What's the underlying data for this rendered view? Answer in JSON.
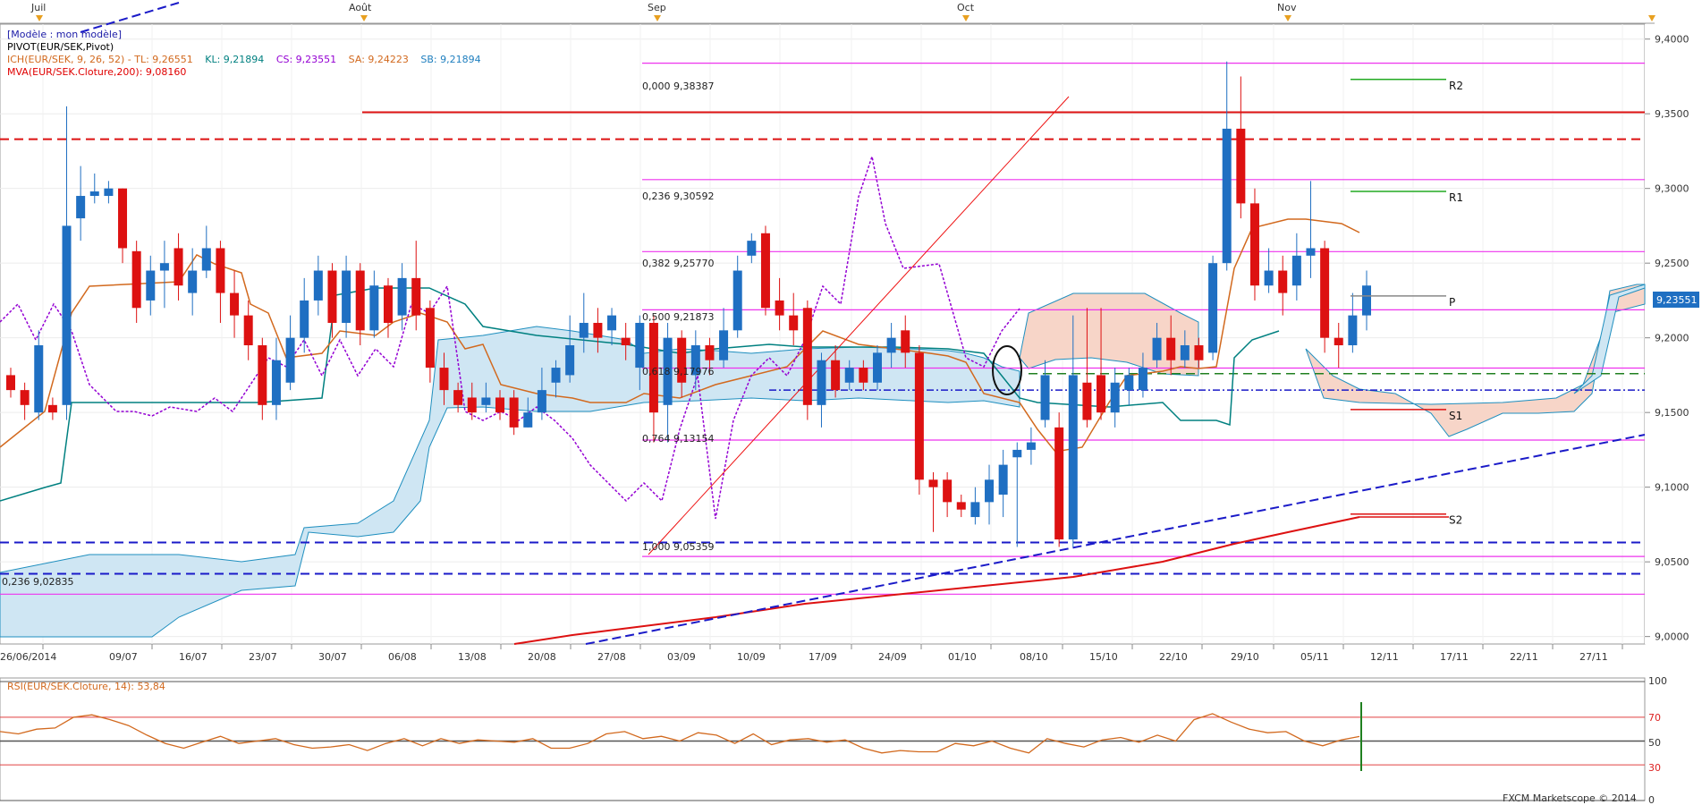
{
  "top_axis": {
    "labels": [
      "Juil",
      "Août",
      "Sep",
      "Oct",
      "Nov"
    ]
  },
  "legend": [
    {
      "text": "[Modèle : mon modèle]",
      "color": "#1a1aa6"
    },
    {
      "text": "PIVOT(EUR/SEK,Pivot)",
      "color": "#000000"
    },
    {
      "text": "ICH(EUR/SEK, 9, 26, 52) - ",
      "color": "#d2691e",
      "parts": [
        {
          "text": "TL: 9,26551",
          "color": "#d2691e"
        },
        {
          "text": "KL: 9,21894",
          "color": "#008080"
        },
        {
          "text": "CS: 9,23551",
          "color": "#9400d3"
        },
        {
          "text": "SA: 9,24223",
          "color": "#d2691e"
        },
        {
          "text": "SB: 9,21894",
          "color": "#1f7fbf"
        }
      ]
    },
    {
      "text": "MVA(EUR/SEK.Cloture,200): 9,08160",
      "color": "#e00000"
    }
  ],
  "price_axis": {
    "labels": [
      "9,4000",
      "9,3500",
      "9,3000",
      "9,2500",
      "9,2000",
      "9,1500",
      "9,1000",
      "9,0500",
      "9,0000"
    ],
    "current_label": "9,23551"
  },
  "fib_labels": [
    "0,000 9,38387",
    "0,236 9,30592",
    "0,382 9,25770",
    "0,500 9,21873",
    "0,618 9,17976",
    "0,764 9,13154",
    "1,000 9,05359",
    "0,236 9,02835"
  ],
  "pivot_labels": [
    "R2",
    "R1",
    "P",
    "S1",
    "S2"
  ],
  "date_axis": {
    "labels": [
      "26/06/2014",
      "09/07",
      "16/07",
      "23/07",
      "30/07",
      "06/08",
      "13/08",
      "20/08",
      "27/08",
      "03/09",
      "10/09",
      "17/09",
      "24/09",
      "01/10",
      "08/10",
      "15/10",
      "22/10",
      "29/10",
      "05/11",
      "12/11",
      "17/11",
      "22/11",
      "27/11"
    ]
  },
  "rsi_panel": {
    "legend": "RSI(EUR/SEK.Cloture, 14): 53,84",
    "levels": [
      "100",
      "70",
      "50",
      "30",
      "0"
    ]
  },
  "footer": "FXCM Marketscope © 2014",
  "colors": {
    "up": "#1f6fc2",
    "down": "#dd1111",
    "cloud_bull": "#cfe6f3",
    "cloud_bear": "#f7d5c8",
    "fib": "#ee33ee"
  },
  "chart_data": [
    {
      "type": "candlestick",
      "title": "EUR/SEK",
      "ylim": [
        8.995,
        9.41
      ],
      "x_categories": [
        "26/06/2014",
        "09/07",
        "16/07",
        "23/07",
        "30/07",
        "06/08",
        "13/08",
        "20/08",
        "27/08",
        "03/09",
        "10/09",
        "17/09",
        "24/09",
        "01/10",
        "08/10",
        "15/10",
        "22/10",
        "29/10",
        "05/11",
        "12/11",
        "17/11",
        "22/11",
        "27/11"
      ],
      "candles": [
        [
          9.175,
          9.165,
          9.18,
          9.16
        ],
        [
          9.165,
          9.155,
          9.17,
          9.145
        ],
        [
          9.15,
          9.195,
          9.205,
          9.145
        ],
        [
          9.155,
          9.15,
          9.16,
          9.145
        ],
        [
          9.155,
          9.275,
          9.355,
          9.145
        ],
        [
          9.28,
          9.295,
          9.315,
          9.265
        ],
        [
          9.295,
          9.298,
          9.31,
          9.29
        ],
        [
          9.295,
          9.3,
          9.305,
          9.29
        ],
        [
          9.3,
          9.26,
          9.3,
          9.25
        ],
        [
          9.258,
          9.22,
          9.265,
          9.21
        ],
        [
          9.225,
          9.245,
          9.255,
          9.215
        ],
        [
          9.245,
          9.25,
          9.265,
          9.22
        ],
        [
          9.26,
          9.235,
          9.27,
          9.225
        ],
        [
          9.23,
          9.245,
          9.26,
          9.215
        ],
        [
          9.245,
          9.26,
          9.275,
          9.24
        ],
        [
          9.26,
          9.23,
          9.265,
          9.21
        ],
        [
          9.23,
          9.215,
          9.245,
          9.2
        ],
        [
          9.215,
          9.195,
          9.225,
          9.185
        ],
        [
          9.195,
          9.155,
          9.2,
          9.145
        ],
        [
          9.155,
          9.185,
          9.2,
          9.145
        ],
        [
          9.17,
          9.2,
          9.215,
          9.165
        ],
        [
          9.2,
          9.225,
          9.24,
          9.19
        ],
        [
          9.225,
          9.245,
          9.255,
          9.215
        ],
        [
          9.245,
          9.21,
          9.25,
          9.2
        ],
        [
          9.21,
          9.245,
          9.255,
          9.2
        ],
        [
          9.245,
          9.205,
          9.25,
          9.195
        ],
        [
          9.205,
          9.235,
          9.245,
          9.2
        ],
        [
          9.235,
          9.21,
          9.24,
          9.2
        ],
        [
          9.215,
          9.24,
          9.25,
          9.205
        ],
        [
          9.24,
          9.215,
          9.265,
          9.205
        ],
        [
          9.22,
          9.18,
          9.225,
          9.17
        ],
        [
          9.18,
          9.165,
          9.19,
          9.155
        ],
        [
          9.165,
          9.155,
          9.17,
          9.15
        ],
        [
          9.16,
          9.15,
          9.17,
          9.145
        ],
        [
          9.155,
          9.16,
          9.17,
          9.15
        ],
        [
          9.16,
          9.15,
          9.165,
          9.145
        ],
        [
          9.16,
          9.14,
          9.165,
          9.135
        ],
        [
          9.14,
          9.15,
          9.16,
          9.14
        ],
        [
          9.15,
          9.165,
          9.18,
          9.145
        ],
        [
          9.17,
          9.18,
          9.185,
          9.16
        ],
        [
          9.175,
          9.195,
          9.215,
          9.17
        ],
        [
          9.2,
          9.21,
          9.23,
          9.19
        ],
        [
          9.21,
          9.2,
          9.22,
          9.19
        ],
        [
          9.205,
          9.215,
          9.22,
          9.195
        ],
        [
          9.2,
          9.195,
          9.21,
          9.185
        ],
        [
          9.18,
          9.21,
          9.215,
          9.165
        ],
        [
          9.21,
          9.15,
          9.215,
          9.13
        ],
        [
          9.155,
          9.2,
          9.21,
          9.13
        ],
        [
          9.2,
          9.17,
          9.205,
          9.16
        ],
        [
          9.175,
          9.195,
          9.205,
          9.165
        ],
        [
          9.195,
          9.185,
          9.2,
          9.175
        ],
        [
          9.185,
          9.205,
          9.22,
          9.18
        ],
        [
          9.205,
          9.245,
          9.255,
          9.2
        ],
        [
          9.255,
          9.265,
          9.27,
          9.25
        ],
        [
          9.27,
          9.22,
          9.275,
          9.215
        ],
        [
          9.225,
          9.215,
          9.24,
          9.205
        ],
        [
          9.215,
          9.205,
          9.23,
          9.195
        ],
        [
          9.22,
          9.155,
          9.225,
          9.145
        ],
        [
          9.155,
          9.185,
          9.19,
          9.14
        ],
        [
          9.185,
          9.165,
          9.195,
          9.16
        ],
        [
          9.17,
          9.18,
          9.185,
          9.165
        ],
        [
          9.18,
          9.17,
          9.185,
          9.165
        ],
        [
          9.17,
          9.19,
          9.195,
          9.165
        ],
        [
          9.19,
          9.2,
          9.21,
          9.18
        ],
        [
          9.205,
          9.19,
          9.215,
          9.18
        ],
        [
          9.19,
          9.105,
          9.195,
          9.095
        ],
        [
          9.105,
          9.1,
          9.11,
          9.07
        ],
        [
          9.105,
          9.09,
          9.11,
          9.08
        ],
        [
          9.09,
          9.085,
          9.095,
          9.08
        ],
        [
          9.08,
          9.09,
          9.1,
          9.075
        ],
        [
          9.09,
          9.105,
          9.115,
          9.075
        ],
        [
          9.095,
          9.115,
          9.125,
          9.08
        ],
        [
          9.12,
          9.125,
          9.13,
          9.06
        ],
        [
          9.125,
          9.13,
          9.14,
          9.115
        ],
        [
          9.145,
          9.175,
          9.185,
          9.14
        ],
        [
          9.14,
          9.065,
          9.15,
          9.06
        ],
        [
          9.065,
          9.175,
          9.215,
          9.06
        ],
        [
          9.17,
          9.145,
          9.22,
          9.14
        ],
        [
          9.175,
          9.15,
          9.22,
          9.145
        ],
        [
          9.15,
          9.17,
          9.18,
          9.14
        ],
        [
          9.165,
          9.175,
          9.18,
          9.155
        ],
        [
          9.165,
          9.18,
          9.19,
          9.16
        ],
        [
          9.185,
          9.2,
          9.21,
          9.18
        ],
        [
          9.2,
          9.185,
          9.215,
          9.175
        ],
        [
          9.185,
          9.195,
          9.205,
          9.18
        ],
        [
          9.195,
          9.185,
          9.2,
          9.18
        ],
        [
          9.19,
          9.25,
          9.255,
          9.185
        ],
        [
          9.25,
          9.34,
          9.385,
          9.245
        ],
        [
          9.34,
          9.29,
          9.375,
          9.28
        ],
        [
          9.29,
          9.235,
          9.3,
          9.225
        ],
        [
          9.235,
          9.245,
          9.26,
          9.23
        ],
        [
          9.245,
          9.23,
          9.255,
          9.215
        ],
        [
          9.235,
          9.255,
          9.27,
          9.225
        ],
        [
          9.255,
          9.26,
          9.305,
          9.24
        ],
        [
          9.26,
          9.2,
          9.265,
          9.19
        ],
        [
          9.2,
          9.195,
          9.21,
          9.18
        ],
        [
          9.195,
          9.215,
          9.23,
          9.19
        ],
        [
          9.215,
          9.235,
          9.245,
          9.205
        ]
      ],
      "horizontal_levels": [
        {
          "name": "fib 0,000",
          "y": 9.38387,
          "color": "#ee33ee"
        },
        {
          "name": "fib 0,236",
          "y": 9.30592,
          "color": "#ee33ee"
        },
        {
          "name": "fib 0,382",
          "y": 9.2577,
          "color": "#ee33ee"
        },
        {
          "name": "fib 0,500",
          "y": 9.21873,
          "color": "#ee33ee"
        },
        {
          "name": "fib 0,618",
          "y": 9.17976,
          "color": "#ee33ee"
        },
        {
          "name": "fib 0,764",
          "y": 9.13154,
          "color": "#ee33ee"
        },
        {
          "name": "fib 1,000",
          "y": 9.05359,
          "color": "#ee33ee"
        },
        {
          "name": "fib 0,236",
          "y": 9.02835,
          "color": "#ee33ee"
        },
        {
          "name": "resistance",
          "y": 9.351,
          "color": "#dd1111",
          "style": "solid"
        },
        {
          "name": "resistance dashed",
          "y": 9.333,
          "color": "#dd1111",
          "style": "dashed"
        },
        {
          "name": "support dashed",
          "y": 9.063,
          "color": "#1a1ac8",
          "style": "dashed"
        },
        {
          "name": "support dashed 2",
          "y": 9.042,
          "color": "#1a1ac8",
          "style": "dashed"
        },
        {
          "name": "mid dashdot",
          "y": 9.165,
          "color": "#1a1ac8",
          "style": "dashdot"
        },
        {
          "name": "green dashed",
          "y": 9.176,
          "color": "#208020",
          "style": "dashed"
        }
      ],
      "pivot_levels": [
        {
          "label": "R2",
          "y": 9.373
        },
        {
          "label": "R1",
          "y": 9.298
        },
        {
          "label": "P",
          "y": 9.228
        },
        {
          "label": "S1",
          "y": 9.152
        },
        {
          "label": "S2",
          "y": 9.082
        }
      ],
      "ylabels": [
        "9,4000",
        "9,3500",
        "9,3000",
        "9,2500",
        "9,2000",
        "9,1500",
        "9,1000",
        "9,0500",
        "9,0000"
      ],
      "current_price": 9.23551
    },
    {
      "type": "line",
      "title": "RSI(EUR/SEK.Cloture, 14): 53,84",
      "ylim": [
        0,
        100
      ],
      "levels": [
        100,
        70,
        50,
        30,
        0
      ],
      "series": [
        {
          "name": "RSI(EUR/SEK.Cloture, 14): 53,84",
          "values": [
            58,
            56,
            60,
            61,
            70,
            72,
            68,
            63,
            55,
            48,
            44,
            49,
            54,
            48,
            50,
            52,
            47,
            44,
            45,
            47,
            42,
            48,
            52,
            46,
            52,
            48,
            51,
            50,
            49,
            52,
            44,
            44,
            48,
            56,
            58,
            52,
            54,
            50,
            57,
            55,
            48,
            56,
            47,
            51,
            52,
            49,
            51,
            44,
            40,
            42,
            41,
            41,
            48,
            46,
            50,
            44,
            40,
            52,
            48,
            45,
            51,
            53,
            49,
            55,
            50,
            68,
            73,
            66,
            60,
            57,
            58,
            50,
            46,
            51,
            53.84
          ]
        }
      ]
    }
  ]
}
